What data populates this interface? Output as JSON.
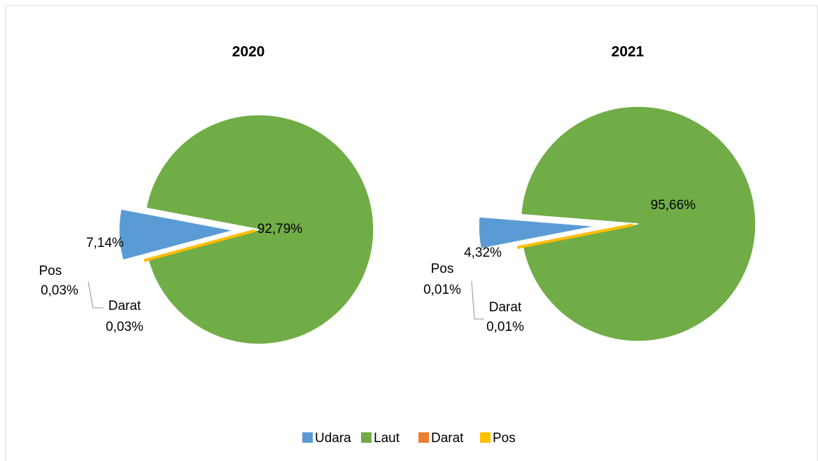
{
  "chart_data": [
    {
      "type": "pie",
      "title": "2020",
      "categories": [
        "Udara",
        "Laut",
        "Darat",
        "Pos"
      ],
      "values": [
        7.14,
        92.79,
        0.03,
        0.03
      ],
      "value_labels": [
        "7,14%",
        "92,79%",
        "0,03%",
        "0,03%"
      ],
      "colors": [
        "#5b9bd5",
        "#70ad47",
        "#ed7d31",
        "#ffc000"
      ],
      "legend": "bottom"
    },
    {
      "type": "pie",
      "title": "2021",
      "categories": [
        "Udara",
        "Laut",
        "Darat",
        "Pos"
      ],
      "values": [
        4.32,
        95.66,
        0.01,
        0.01
      ],
      "value_labels": [
        "4,32%",
        "95,66%",
        "0,01%",
        "0,01%"
      ],
      "colors": [
        "#5b9bd5",
        "#70ad47",
        "#ed7d31",
        "#ffc000"
      ],
      "legend": "bottom"
    }
  ]
}
